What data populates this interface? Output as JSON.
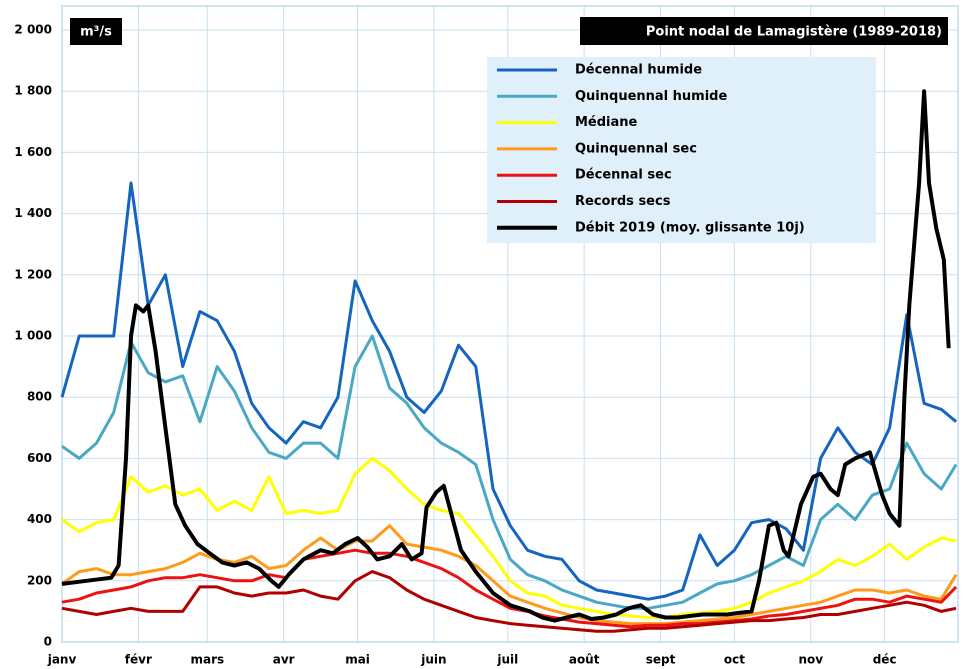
{
  "chart_data": {
    "type": "line",
    "title": "Point nodal de Lamagistère (1989-2018)",
    "y_label": "m³/s",
    "xlim": [
      0,
      365
    ],
    "ylim": [
      0,
      2000
    ],
    "xticks": [
      {
        "value": 0,
        "label": "janv"
      },
      {
        "value": 31,
        "label": "févr"
      },
      {
        "value": 59,
        "label": "mars"
      },
      {
        "value": 90,
        "label": "avr"
      },
      {
        "value": 120,
        "label": "mai"
      },
      {
        "value": 151,
        "label": "juin"
      },
      {
        "value": 181,
        "label": "juil"
      },
      {
        "value": 212,
        "label": "août"
      },
      {
        "value": 243,
        "label": "sept"
      },
      {
        "value": 273,
        "label": "oct"
      },
      {
        "value": 304,
        "label": "nov"
      },
      {
        "value": 334,
        "label": "déc"
      }
    ],
    "yticks": [
      0,
      200,
      400,
      600,
      800,
      {
        "value": 1000,
        "label": "1 000"
      },
      {
        "value": 1200,
        "label": "1 200"
      },
      {
        "value": 1400,
        "label": "1 400"
      },
      {
        "value": 1600,
        "label": "1 600"
      },
      {
        "value": 1800,
        "label": "1 800"
      },
      {
        "value": 2000,
        "label": "2 000"
      }
    ],
    "grid": true,
    "legend": "upper right",
    "x": [
      0,
      7,
      14,
      21,
      28,
      35,
      42,
      49,
      56,
      63,
      70,
      77,
      84,
      91,
      98,
      105,
      112,
      119,
      126,
      133,
      140,
      147,
      154,
      161,
      168,
      175,
      182,
      189,
      196,
      203,
      210,
      217,
      224,
      231,
      238,
      245,
      252,
      259,
      266,
      273,
      280,
      287,
      294,
      301,
      308,
      315,
      322,
      329,
      336,
      343,
      350,
      357,
      363
    ],
    "series": [
      {
        "name": "Décennal humide",
        "color": "#1565c0",
        "values": [
          800,
          1000,
          1000,
          1000,
          1500,
          1100,
          1200,
          900,
          1080,
          1050,
          950,
          780,
          700,
          650,
          720,
          700,
          800,
          1180,
          1050,
          950,
          800,
          750,
          820,
          970,
          900,
          500,
          380,
          300,
          280,
          270,
          200,
          170,
          160,
          150,
          140,
          150,
          170,
          350,
          250,
          300,
          390,
          400,
          370,
          300,
          600,
          700,
          620,
          580,
          700,
          1070,
          780,
          760,
          720
        ]
      },
      {
        "name": "Quinquennal humide",
        "color": "#4aa8c4",
        "values": [
          640,
          600,
          650,
          750,
          980,
          880,
          850,
          870,
          720,
          900,
          820,
          700,
          620,
          600,
          650,
          650,
          600,
          900,
          1000,
          830,
          780,
          700,
          650,
          620,
          580,
          400,
          270,
          220,
          200,
          170,
          150,
          130,
          120,
          110,
          110,
          120,
          130,
          160,
          190,
          200,
          220,
          250,
          280,
          250,
          400,
          450,
          400,
          480,
          500,
          650,
          550,
          500,
          580
        ]
      },
      {
        "name": "Médiane",
        "color": "#ffff00",
        "values": [
          400,
          360,
          390,
          400,
          540,
          490,
          510,
          480,
          500,
          430,
          460,
          430,
          540,
          420,
          430,
          420,
          430,
          550,
          600,
          560,
          500,
          450,
          430,
          420,
          350,
          280,
          200,
          160,
          150,
          120,
          110,
          100,
          90,
          85,
          80,
          80,
          90,
          95,
          100,
          110,
          130,
          160,
          180,
          200,
          230,
          270,
          250,
          280,
          320,
          270,
          310,
          340,
          330
        ]
      },
      {
        "name": "Quinquennal sec",
        "color": "#ff9a1a",
        "values": [
          190,
          230,
          240,
          220,
          220,
          230,
          240,
          260,
          290,
          270,
          260,
          280,
          240,
          250,
          300,
          340,
          300,
          330,
          330,
          380,
          320,
          310,
          300,
          280,
          250,
          200,
          150,
          130,
          110,
          95,
          80,
          70,
          65,
          60,
          60,
          60,
          65,
          70,
          75,
          80,
          90,
          100,
          110,
          120,
          130,
          150,
          170,
          170,
          160,
          170,
          150,
          140,
          220
        ]
      },
      {
        "name": "Décennal sec",
        "color": "#ee1111",
        "values": [
          130,
          140,
          160,
          170,
          180,
          200,
          210,
          210,
          220,
          210,
          200,
          200,
          220,
          210,
          270,
          280,
          290,
          300,
          290,
          290,
          280,
          260,
          240,
          210,
          170,
          140,
          110,
          100,
          85,
          75,
          65,
          60,
          55,
          50,
          55,
          55,
          60,
          60,
          65,
          70,
          75,
          85,
          90,
          100,
          110,
          120,
          140,
          140,
          130,
          150,
          140,
          130,
          180
        ]
      },
      {
        "name": "Records secs",
        "color": "#b00000",
        "values": [
          110,
          100,
          90,
          100,
          110,
          100,
          100,
          100,
          180,
          180,
          160,
          150,
          160,
          160,
          170,
          150,
          140,
          200,
          230,
          210,
          170,
          140,
          120,
          100,
          80,
          70,
          60,
          55,
          50,
          45,
          40,
          35,
          35,
          40,
          45,
          45,
          50,
          55,
          60,
          65,
          70,
          70,
          75,
          80,
          90,
          90,
          100,
          110,
          120,
          130,
          120,
          100,
          110
        ]
      },
      {
        "name": "Débit 2019 (moy. glissante 10j)",
        "color": "#000000",
        "x": [
          0,
          10,
          20,
          23,
          26,
          28,
          30,
          33,
          35,
          38,
          42,
          46,
          50,
          55,
          60,
          65,
          70,
          75,
          80,
          85,
          88,
          92,
          98,
          105,
          110,
          115,
          120,
          124,
          128,
          133,
          138,
          142,
          146,
          148,
          152,
          155,
          158,
          162,
          168,
          175,
          182,
          190,
          195,
          200,
          205,
          210,
          215,
          220,
          225,
          230,
          235,
          240,
          245,
          250,
          255,
          260,
          265,
          270,
          275,
          280,
          283,
          287,
          290,
          293,
          295,
          300,
          305,
          308,
          312,
          315,
          318,
          322,
          328,
          333,
          336,
          340,
          342,
          344,
          348,
          350,
          352,
          355,
          358,
          360
        ],
        "values": [
          190,
          200,
          210,
          250,
          600,
          1000,
          1100,
          1080,
          1100,
          950,
          700,
          450,
          380,
          320,
          290,
          260,
          250,
          260,
          240,
          200,
          180,
          220,
          270,
          300,
          290,
          320,
          340,
          310,
          270,
          280,
          320,
          270,
          290,
          440,
          490,
          510,
          420,
          300,
          230,
          160,
          120,
          100,
          80,
          70,
          80,
          90,
          75,
          80,
          90,
          110,
          120,
          90,
          80,
          80,
          85,
          90,
          90,
          90,
          95,
          100,
          200,
          380,
          390,
          300,
          280,
          450,
          540,
          550,
          500,
          480,
          580,
          600,
          620,
          480,
          420,
          380,
          800,
          1100,
          1500,
          1800,
          1500,
          1350,
          1250,
          960
        ]
      }
    ]
  }
}
